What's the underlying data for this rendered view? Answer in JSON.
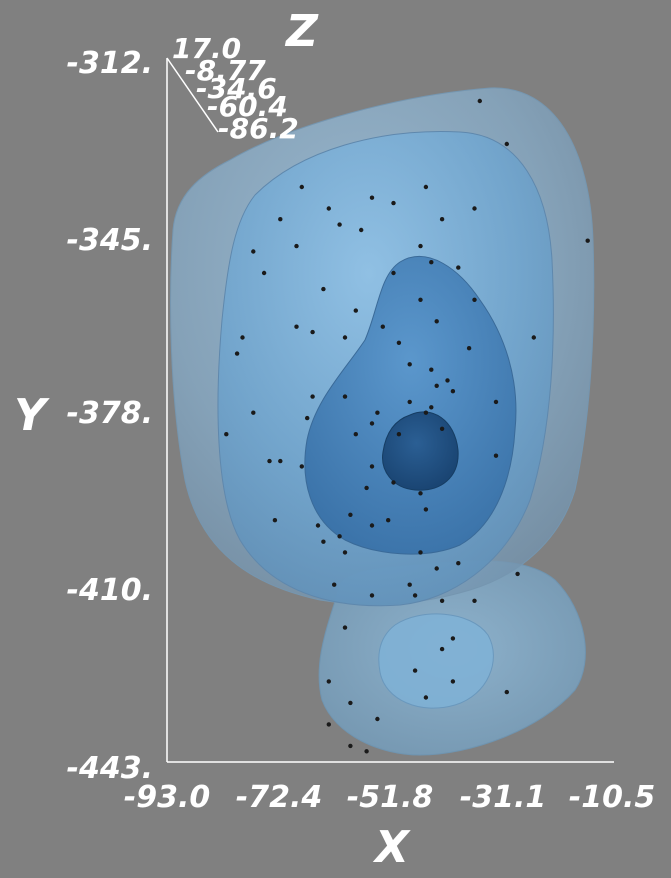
{
  "chart_data": {
    "type": "scatter",
    "subtype": "3d-isosurface-with-points",
    "xlabel": "X",
    "ylabel": "Y",
    "zlabel": "Z",
    "xticks": [
      "-93.0",
      "-72.4",
      "-51.8",
      "-31.1",
      "-10.5"
    ],
    "yticks": [
      "-312.",
      "-345.",
      "-378.",
      "-410.",
      "-443."
    ],
    "zticks": [
      "17.0",
      "-8.77",
      "-34.6",
      "-60.4",
      "-86.2"
    ],
    "xlim": [
      -93.0,
      -10.5
    ],
    "ylim": [
      -443,
      -312
    ],
    "zlim": [
      -86.2,
      17.0
    ],
    "colors": {
      "background": "#808080",
      "isosurface_outer": "#7fa6c2",
      "isosurface_mid": "#6aa6d2",
      "isosurface_inner": "#3f7fb8",
      "isosurface_core": "#1f4f80",
      "points": "#1a1a1a",
      "text": "#ffffff"
    },
    "points": [
      [
        -35,
        -320
      ],
      [
        -30,
        -328
      ],
      [
        -68,
        -336
      ],
      [
        -63,
        -340
      ],
      [
        -55,
        -338
      ],
      [
        -51,
        -339
      ],
      [
        -45,
        -336
      ],
      [
        -36,
        -340
      ],
      [
        -42,
        -342
      ],
      [
        -57,
        -344
      ],
      [
        -61,
        -343
      ],
      [
        -72,
        -342
      ],
      [
        -69,
        -347
      ],
      [
        -46,
        -347
      ],
      [
        -44,
        -350
      ],
      [
        -39,
        -351
      ],
      [
        -15,
        -346
      ],
      [
        -77,
        -348
      ],
      [
        -75,
        -352
      ],
      [
        -51,
        -352
      ],
      [
        -64,
        -355
      ],
      [
        -46,
        -357
      ],
      [
        -36,
        -357
      ],
      [
        -37,
        -366
      ],
      [
        -58,
        -359
      ],
      [
        -69,
        -362
      ],
      [
        -66,
        -363
      ],
      [
        -60,
        -364
      ],
      [
        -53,
        -362
      ],
      [
        -50,
        -365
      ],
      [
        -43,
        -361
      ],
      [
        -79,
        -364
      ],
      [
        -80,
        -367
      ],
      [
        -25,
        -364
      ],
      [
        -48,
        -369
      ],
      [
        -44,
        -370
      ],
      [
        -41,
        -372
      ],
      [
        -40,
        -374
      ],
      [
        -60,
        -375
      ],
      [
        -43,
        -373
      ],
      [
        -58,
        -382
      ],
      [
        -66,
        -375
      ],
      [
        -48,
        -376
      ],
      [
        -32,
        -376
      ],
      [
        -44,
        -377
      ],
      [
        -55,
        -380
      ],
      [
        -45,
        -378
      ],
      [
        -54,
        -378
      ],
      [
        -82,
        -382
      ],
      [
        -77,
        -378
      ],
      [
        -67,
        -379
      ],
      [
        -42,
        -381
      ],
      [
        -50,
        -382
      ],
      [
        -72,
        -387
      ],
      [
        -74,
        -387
      ],
      [
        -55,
        -388
      ],
      [
        -68,
        -388
      ],
      [
        -32,
        -386
      ],
      [
        -51,
        -391
      ],
      [
        -56,
        -392
      ],
      [
        -46,
        -393
      ],
      [
        -52,
        -398
      ],
      [
        -45,
        -396
      ],
      [
        -59,
        -397
      ],
      [
        -55,
        -399
      ],
      [
        -61,
        -401
      ],
      [
        -46,
        -404
      ],
      [
        -73,
        -398
      ],
      [
        -65,
        -399
      ],
      [
        -60,
        -404
      ],
      [
        -64,
        -402
      ],
      [
        -39,
        -406
      ],
      [
        -43,
        -407
      ],
      [
        -55,
        -412
      ],
      [
        -62,
        -410
      ],
      [
        -47,
        -412
      ],
      [
        -42,
        -413
      ],
      [
        -60,
        -418
      ],
      [
        -42,
        -422
      ],
      [
        -47,
        -426
      ],
      [
        -63,
        -428
      ],
      [
        -45,
        -431
      ],
      [
        -40,
        -428
      ],
      [
        -40,
        -420
      ],
      [
        -30,
        -430
      ],
      [
        -59,
        -432
      ],
      [
        -63,
        -436
      ],
      [
        -54,
        -435
      ],
      [
        -59,
        -440
      ],
      [
        -56,
        -441
      ],
      [
        -48,
        -410
      ],
      [
        -36,
        -413
      ],
      [
        -28,
        -408
      ]
    ]
  }
}
